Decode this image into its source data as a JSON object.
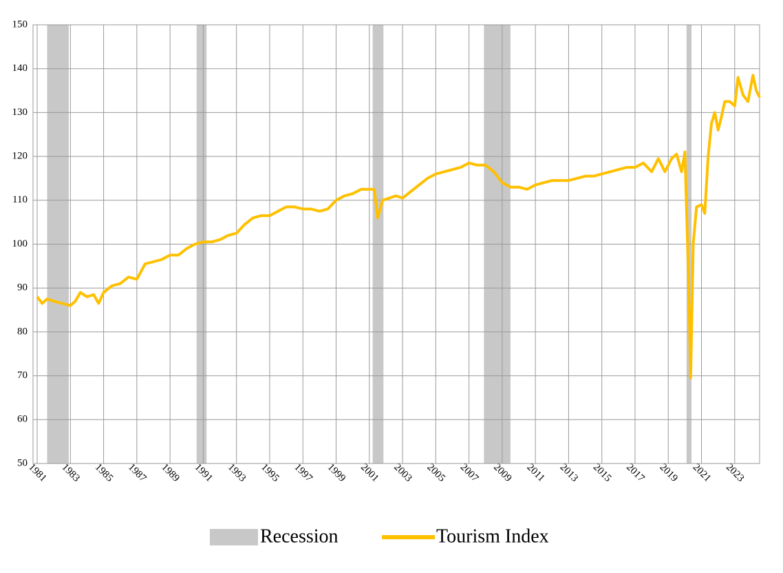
{
  "chart_data": {
    "type": "line",
    "x": [
      1981.0,
      1981.3,
      1981.6,
      1982.0,
      1982.5,
      1983.0,
      1983.3,
      1983.6,
      1984.0,
      1984.4,
      1984.7,
      1985.0,
      1985.5,
      1986.0,
      1986.5,
      1987.0,
      1987.5,
      1988.0,
      1988.5,
      1989.0,
      1989.5,
      1990.0,
      1990.5,
      1991.0,
      1991.5,
      1992.0,
      1992.5,
      1993.0,
      1993.5,
      1994.0,
      1994.5,
      1995.0,
      1995.5,
      1996.0,
      1996.5,
      1997.0,
      1997.5,
      1998.0,
      1998.5,
      1999.0,
      1999.5,
      2000.0,
      2000.5,
      2001.0,
      2001.3,
      2001.5,
      2001.8,
      2002.2,
      2002.6,
      2003.0,
      2003.5,
      2004.0,
      2004.5,
      2005.0,
      2005.5,
      2006.0,
      2006.5,
      2007.0,
      2007.5,
      2008.0,
      2008.5,
      2009.0,
      2009.5,
      2010.0,
      2010.5,
      2011.0,
      2011.5,
      2012.0,
      2012.5,
      2013.0,
      2013.5,
      2014.0,
      2014.5,
      2015.0,
      2015.5,
      2016.0,
      2016.5,
      2017.0,
      2017.5,
      2018.0,
      2018.4,
      2018.8,
      2019.2,
      2019.5,
      2019.8,
      2020.0,
      2020.2,
      2020.35,
      2020.5,
      2020.7,
      2021.0,
      2021.2,
      2021.4,
      2021.6,
      2021.8,
      2022.0,
      2022.2,
      2022.4,
      2022.7,
      2023.0,
      2023.2,
      2023.5,
      2023.8,
      2024.1,
      2024.3,
      2024.5
    ],
    "series": [
      {
        "name": "Tourism Index",
        "color": "#ffc000",
        "values": [
          88,
          86.5,
          87.5,
          87,
          86.5,
          86,
          87,
          89,
          88,
          88.5,
          86.5,
          89,
          90.5,
          91,
          92.5,
          92,
          95.5,
          96,
          96.5,
          97.5,
          97.5,
          99,
          100,
          100.5,
          100.5,
          101,
          102,
          102.5,
          104.5,
          106,
          106.5,
          106.5,
          107.5,
          108.5,
          108.5,
          108,
          108,
          107.5,
          108,
          110,
          111,
          111.5,
          112.5,
          112.5,
          112.5,
          106,
          110,
          110.5,
          111,
          110.5,
          112,
          113.5,
          115,
          116,
          116.5,
          117,
          117.5,
          118.5,
          118,
          118,
          116.5,
          114,
          113,
          113,
          112.5,
          113.5,
          114,
          114.5,
          114.5,
          114.5,
          115,
          115.5,
          115.5,
          116,
          116.5,
          117,
          117.5,
          117.5,
          118.5,
          116.5,
          119.5,
          116.5,
          119.5,
          120.5,
          116.5,
          121,
          95,
          69.5,
          100,
          108.5,
          109,
          107,
          120,
          127.5,
          130,
          126,
          129,
          132.5,
          132.5,
          131.5,
          138,
          134,
          132.5,
          138.5,
          135,
          133.5
        ]
      }
    ],
    "recession": {
      "name": "Recession",
      "color": "#c8c8c8",
      "spans": [
        [
          1981.6,
          1982.9
        ],
        [
          1990.6,
          1991.2
        ],
        [
          2001.2,
          2001.85
        ],
        [
          2007.9,
          2009.5
        ],
        [
          2020.1,
          2020.4
        ]
      ]
    },
    "xlim": [
      1980.75,
      2024.5
    ],
    "xticks": [
      1981,
      1983,
      1985,
      1987,
      1989,
      1991,
      1993,
      1995,
      1997,
      1999,
      2001,
      2003,
      2005,
      2007,
      2009,
      2011,
      2013,
      2015,
      2017,
      2019,
      2021,
      2023
    ],
    "ylim": [
      50,
      150
    ],
    "yticks": [
      50,
      60,
      70,
      80,
      90,
      100,
      110,
      120,
      130,
      140,
      150
    ],
    "grid": true
  }
}
